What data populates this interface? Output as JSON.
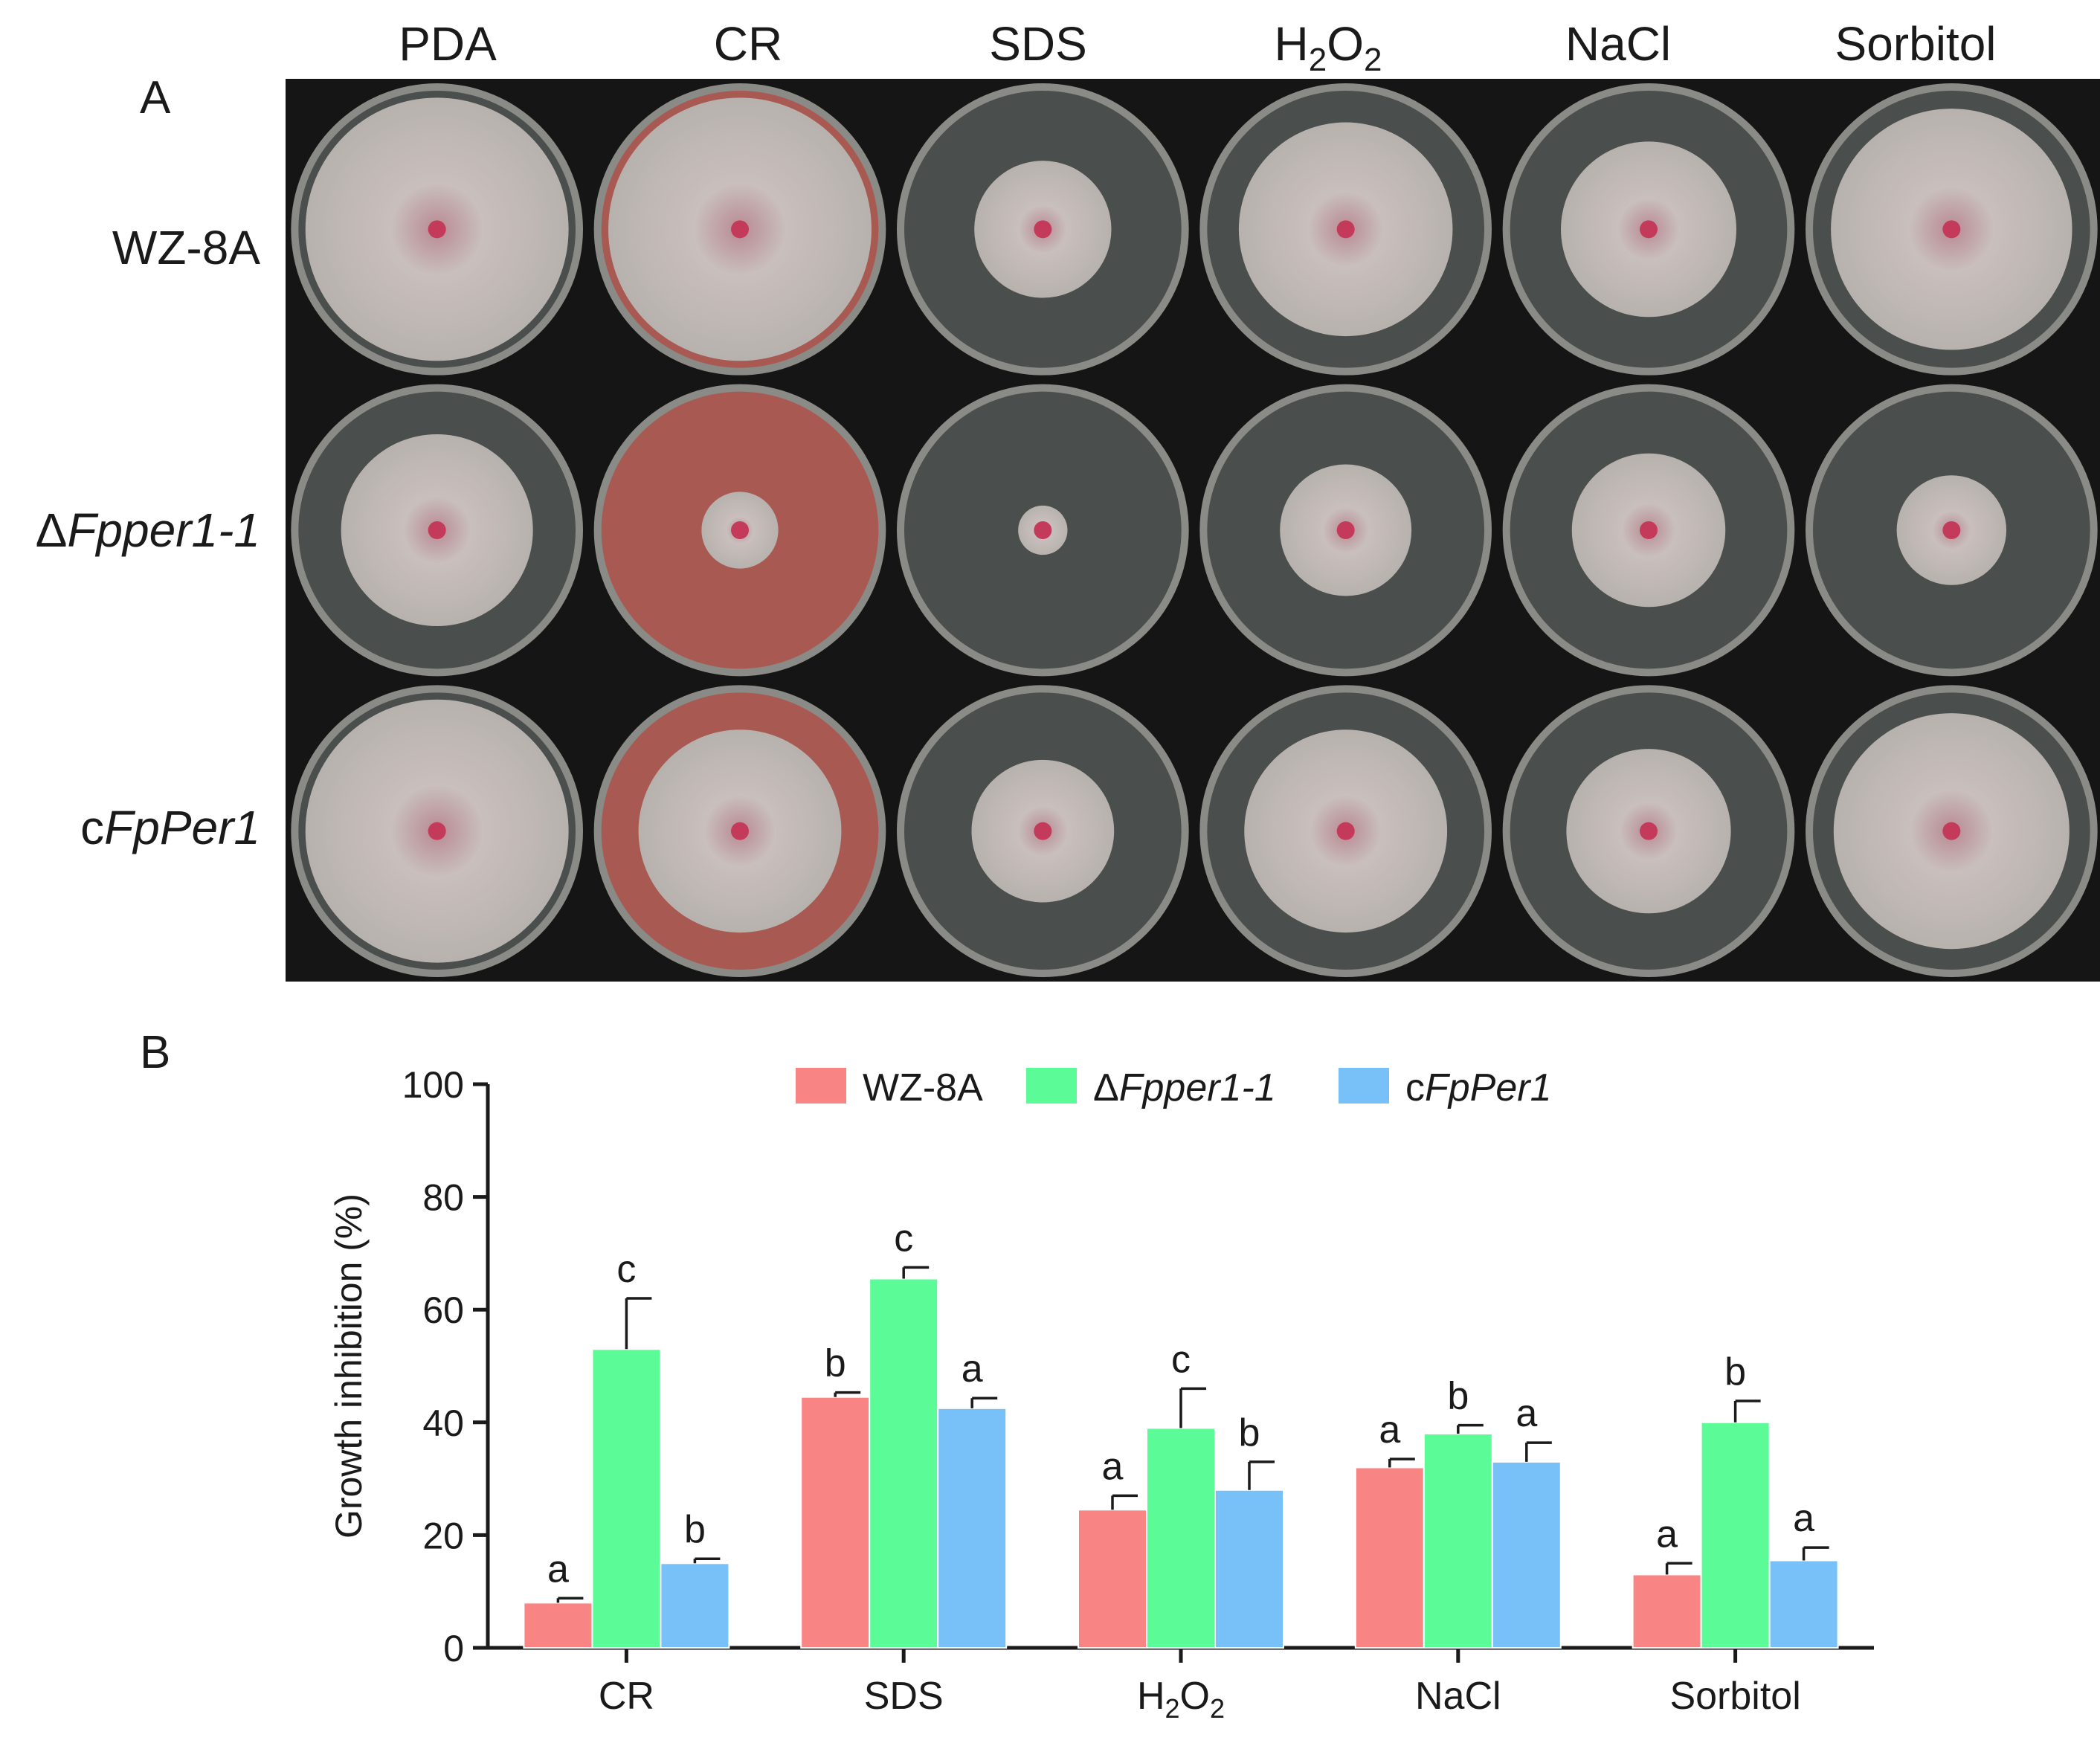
{
  "panelA": {
    "letter": "A",
    "columns": [
      "PDA",
      "CR",
      "SDS",
      "H2O2",
      "NaCl",
      "Sorbitol"
    ],
    "column_h2o2": {
      "main": "H",
      "sub1": "2",
      "mid": "O",
      "sub2": "2"
    },
    "rows": [
      {
        "prefix": "",
        "italic": "",
        "plain": "WZ-8A"
      },
      {
        "prefix": "Δ",
        "italic": "Fpper1-1",
        "plain": ""
      },
      {
        "prefix": "c",
        "italic": "FpPer1",
        "plain": ""
      }
    ],
    "plates": {
      "colony_diameter_fraction": [
        [
          0.96,
          0.96,
          0.5,
          0.78,
          0.64,
          0.88
        ],
        [
          0.7,
          0.28,
          0.18,
          0.48,
          0.56,
          0.4
        ],
        [
          0.96,
          0.74,
          0.52,
          0.74,
          0.6,
          0.86
        ]
      ],
      "cr_medium_color": "#a85a52",
      "plate_medium_color": "#4a4e4c",
      "colony_color": "#c9bfbd",
      "center_color": "#c43a5a"
    }
  },
  "panelB": {
    "letter": "B"
  },
  "chart_data": {
    "type": "bar",
    "ylabel": "Growth inhibition (%)",
    "ylim": [
      0,
      100
    ],
    "yticks": [
      0,
      20,
      40,
      60,
      80,
      100
    ],
    "categories": [
      "CR",
      "SDS",
      "H2O2",
      "NaCl",
      "Sorbitol"
    ],
    "series": [
      {
        "name": "WZ-8A",
        "color": "#f98484",
        "values": [
          8,
          44.5,
          24.5,
          32,
          13
        ],
        "error": [
          0.8,
          0.8,
          2.5,
          1.5,
          2
        ],
        "letters": [
          "a",
          "b",
          "a",
          "a",
          "a"
        ]
      },
      {
        "name": "ΔFpper1-1",
        "color": "#5bfc97",
        "values": [
          53,
          65.5,
          39,
          38,
          40
        ],
        "error": [
          9,
          2,
          7,
          1.5,
          3.8
        ],
        "letters": [
          "c",
          "c",
          "c",
          "b",
          "b"
        ]
      },
      {
        "name": "cFpPer1",
        "color": "#77c1f8",
        "values": [
          15,
          42.5,
          28,
          33,
          15.5
        ],
        "error": [
          0.8,
          1.8,
          5,
          3.4,
          2.3
        ],
        "letters": [
          "b",
          "a",
          "b",
          "a",
          "a"
        ]
      }
    ],
    "legend": "top-center"
  }
}
